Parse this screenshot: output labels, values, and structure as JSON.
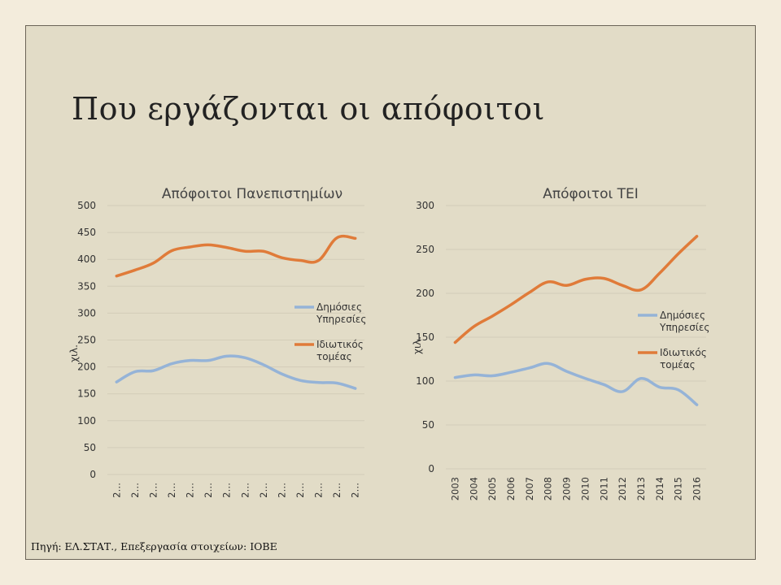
{
  "slide": {
    "title": "Που εργάζονται οι απόφοιτοι",
    "source": "Πηγή: ΕΛ.ΣΤΑΤ., Επεξεργασία στοιχείων: ΙΟΒΕ"
  },
  "colors": {
    "public": "#95b3d7",
    "private": "#e07b39",
    "grid": "#d3cdb9",
    "text": "#333333"
  },
  "chart_data": [
    {
      "type": "line",
      "title": "Απόφοιτοι Πανεπιστημίων",
      "ylabel": "χιλ.",
      "ylim": [
        0,
        500
      ],
      "yticks": [
        0,
        50,
        100,
        150,
        200,
        250,
        300,
        350,
        400,
        450,
        500
      ],
      "categories": [
        "2…",
        "2…",
        "2…",
        "2…",
        "2…",
        "2…",
        "2…",
        "2…",
        "2…",
        "2…",
        "2…",
        "2…",
        "2…",
        "2…"
      ],
      "grid": true,
      "legend": "right",
      "series": [
        {
          "name": "Δημόσιες Υπηρεσίες",
          "values": [
            172,
            191,
            193,
            206,
            212,
            212,
            220,
            217,
            204,
            187,
            175,
            171,
            170,
            160
          ]
        },
        {
          "name": "Ιδιωτικός τομέας",
          "values": [
            369,
            380,
            393,
            416,
            423,
            427,
            422,
            415,
            415,
            403,
            398,
            398,
            440,
            439
          ]
        }
      ]
    },
    {
      "type": "line",
      "title": "Απόφοιτοι ΤΕΙ",
      "ylabel": "χιλ.",
      "ylim": [
        0,
        300
      ],
      "yticks": [
        0,
        50,
        100,
        150,
        200,
        250,
        300
      ],
      "categories": [
        "2003",
        "2004",
        "2005",
        "2006",
        "2007",
        "2008",
        "2009",
        "2010",
        "2011",
        "2012",
        "2013",
        "2014",
        "2015",
        "2016"
      ],
      "grid": true,
      "legend": "right",
      "series": [
        {
          "name": "Δημόσιες Υπηρεσίες",
          "values": [
            104,
            107,
            106,
            110,
            115,
            120,
            111,
            103,
            96,
            88,
            103,
            93,
            90,
            73
          ]
        },
        {
          "name": "Ιδιωτικός τομέας",
          "values": [
            144,
            162,
            174,
            187,
            201,
            213,
            209,
            216,
            217,
            209,
            204,
            223,
            245,
            265
          ]
        }
      ]
    }
  ]
}
